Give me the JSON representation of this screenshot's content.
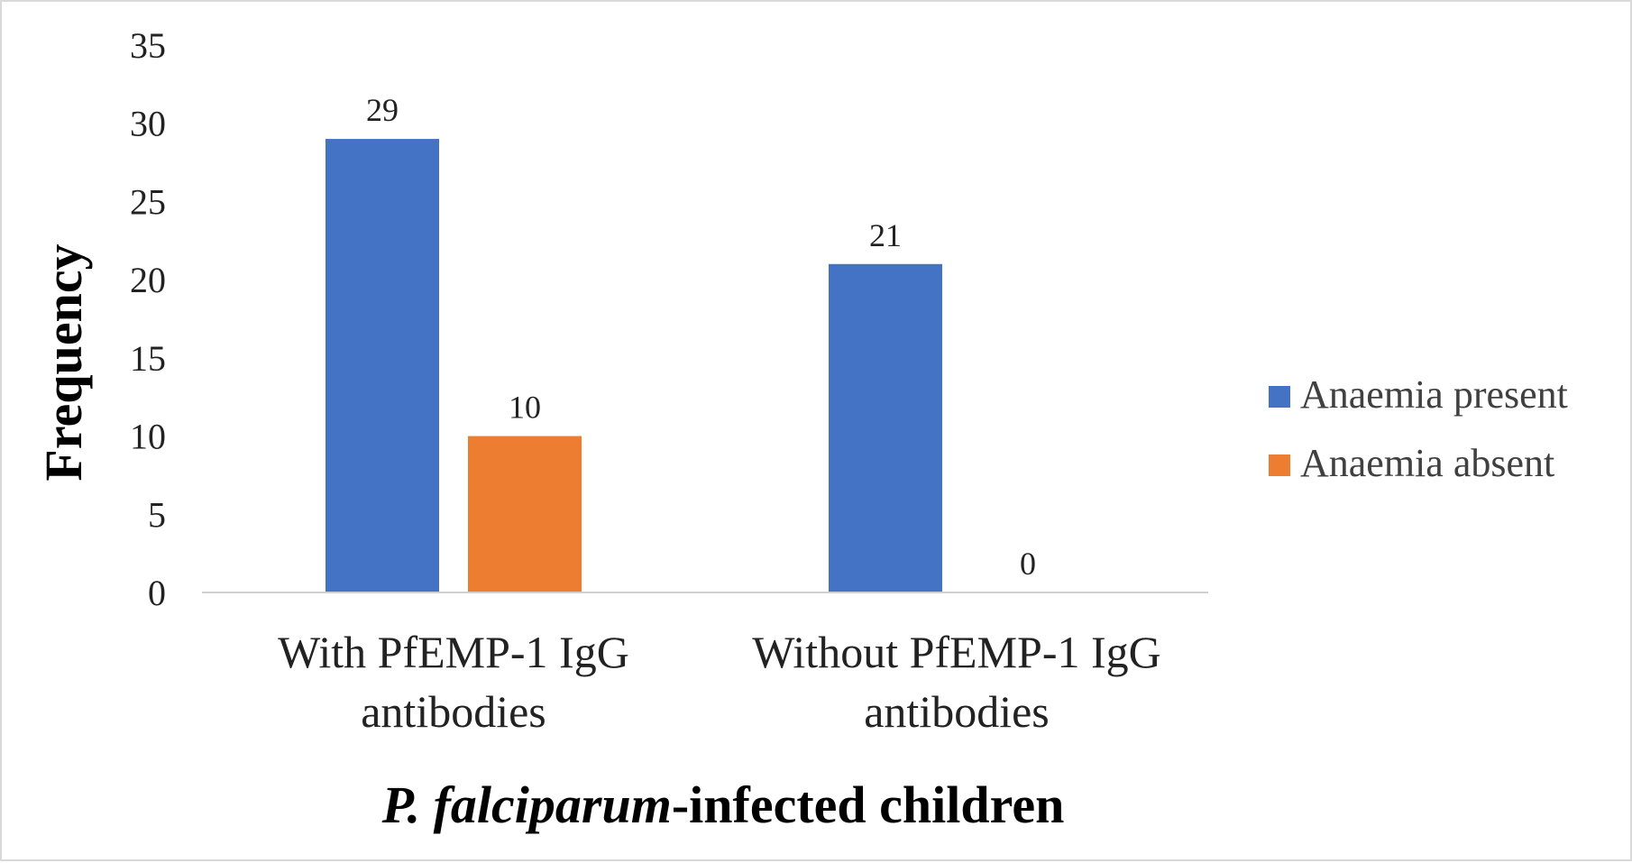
{
  "chart_data": {
    "type": "bar",
    "title": "",
    "xlabel_italic": "P. falciparum",
    "xlabel_rest": "-infected children",
    "ylabel": "Frequency",
    "ylim": [
      0,
      35
    ],
    "yticks": [
      0,
      5,
      10,
      15,
      20,
      25,
      30,
      35
    ],
    "categories": [
      [
        "With PfEMP-1 IgG",
        "antibodies"
      ],
      [
        "Without PfEMP-1 IgG",
        "antibodies"
      ]
    ],
    "series": [
      {
        "name": "Anaemia present",
        "color": "#4472c4",
        "values": [
          29,
          21
        ]
      },
      {
        "name": "Anaemia absent",
        "color": "#ed7d31",
        "values": [
          10,
          0
        ]
      }
    ],
    "data_labels": true,
    "grid": false,
    "legend_position": "right"
  }
}
